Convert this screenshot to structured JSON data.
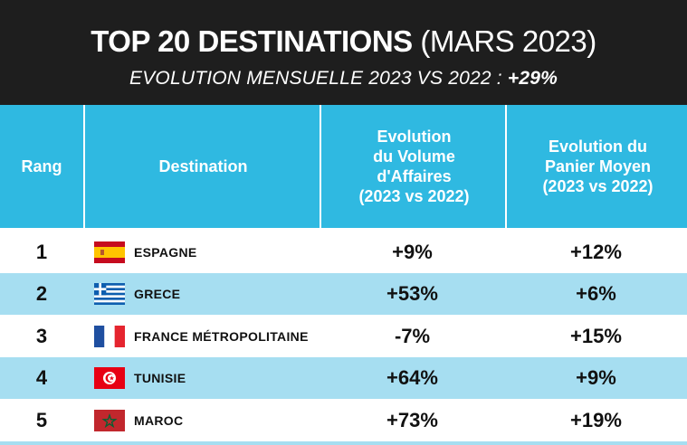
{
  "header": {
    "title_bold": "TOP 20 DESTINATIONS",
    "title_light": "(MARS 2023)",
    "subtitle": "EVOLUTION MENSUELLE 2023 VS 2022 :",
    "subtitle_value": "+29%"
  },
  "columns": {
    "rank": "Rang",
    "destination": "Destination",
    "volume": [
      "Evolution",
      "du Volume",
      "d'Affaires",
      "(2023 vs 2022)"
    ],
    "basket": [
      "Evolution du",
      "Panier Moyen",
      "(2023 vs 2022)"
    ]
  },
  "rows": [
    {
      "rank": "1",
      "destination": "ESPAGNE",
      "flag": "spain-flag-icon",
      "volume": "+9%",
      "basket": "+12%"
    },
    {
      "rank": "2",
      "destination": "GRECE",
      "flag": "greece-flag-icon",
      "volume": "+53%",
      "basket": "+6%"
    },
    {
      "rank": "3",
      "destination": "FRANCE MÉTROPOLITAINE",
      "flag": "france-flag-icon",
      "volume": "-7%",
      "basket": "+15%"
    },
    {
      "rank": "4",
      "destination": "TUNISIE",
      "flag": "tunisia-flag-icon",
      "volume": "+64%",
      "basket": "+9%"
    },
    {
      "rank": "5",
      "destination": "MAROC",
      "flag": "morocco-flag-icon",
      "volume": "+73%",
      "basket": "+19%"
    }
  ],
  "colors": {
    "header_bg": "#1e1e1e",
    "column_header_bg": "#2fb9e1",
    "alt_row_bg": "#a6def1"
  }
}
